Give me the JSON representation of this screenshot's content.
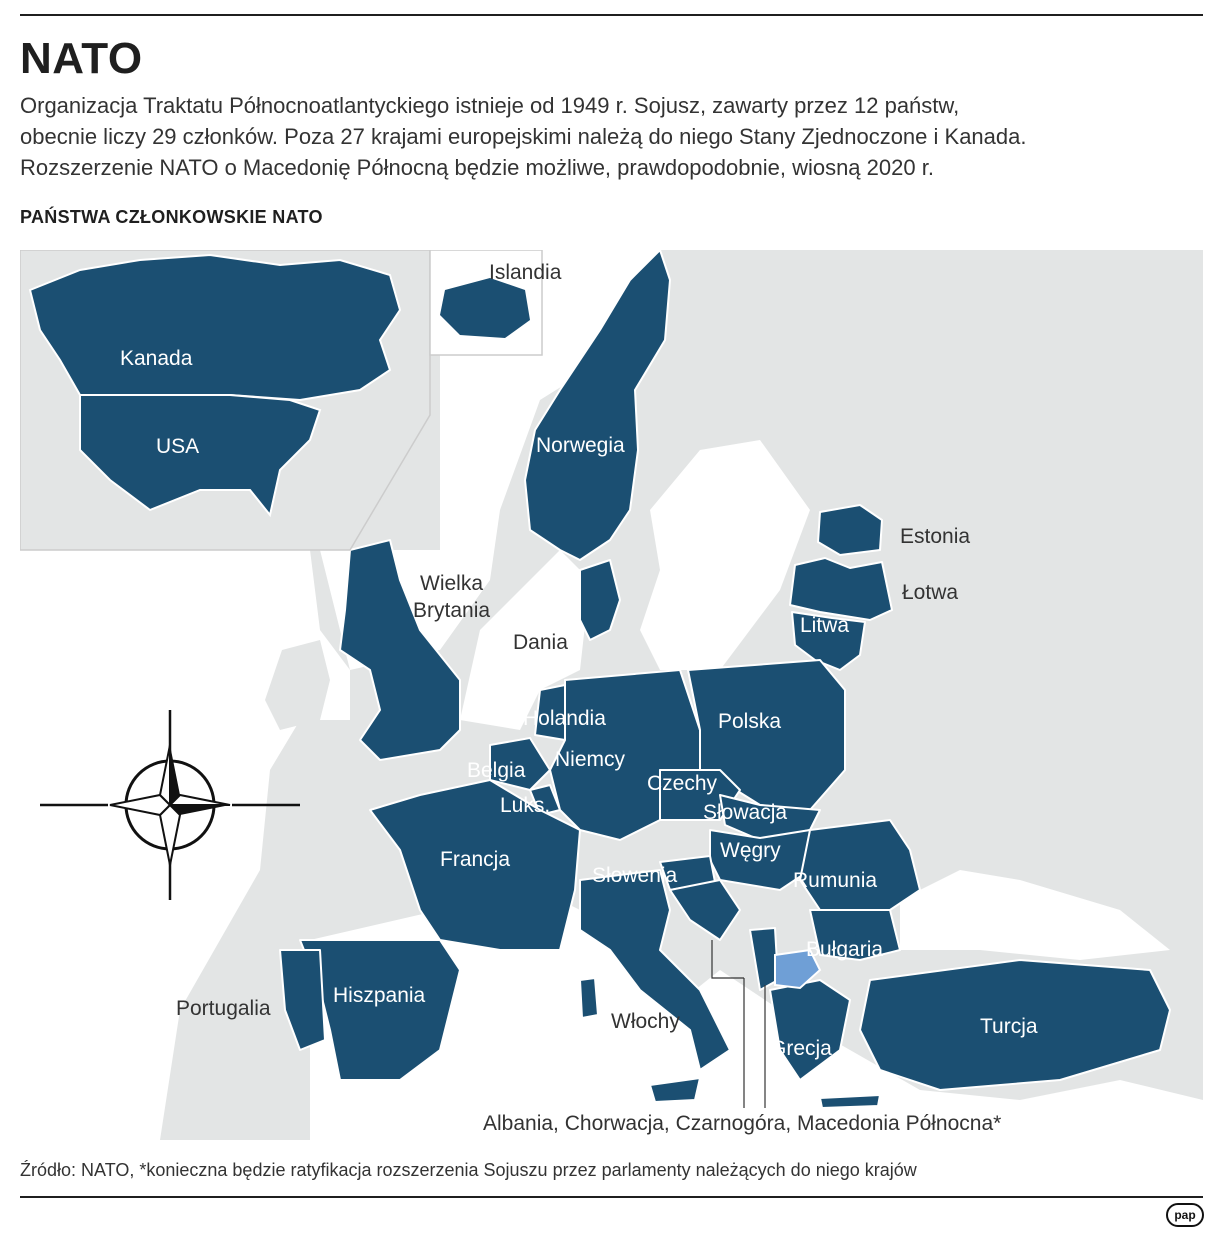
{
  "title": "NATO",
  "subtitle_lines": [
    "Organizacja Traktatu Północnoatlantyckiego istnieje od 1949 r. Sojusz, zawarty przez 12 państw,",
    "obecnie liczy 29 członków. Poza 27 krajami europejskimi należą do niego Stany Zjednoczone i Kanada.",
    "Rozszerzenie NATO o Macedonię Północną będzie możliwe, prawdopodobnie, wiosną 2020 r."
  ],
  "section_label": "PAŃSTWA CZŁONKOWSKIE NATO",
  "labels": {
    "kanada": "Kanada",
    "usa": "USA",
    "islandia": "Islandia",
    "norwegia": "Norwegia",
    "estonia": "Estonia",
    "lotwa": "Łotwa",
    "litwa": "Litwa",
    "wb_line1": "Wielka",
    "wb_line2": "Brytania",
    "dania": "Dania",
    "holandia": "Holandia",
    "polska": "Polska",
    "niemcy": "Niemcy",
    "belgia": "Belgia",
    "luks": "Luks.",
    "czechy": "Czechy",
    "slowacja": "Słowacja",
    "francja": "Francja",
    "wegry": "Węgry",
    "slowenia": "Słowenia",
    "rumunia": "Rumunia",
    "bulgaria": "Bułgaria",
    "portugalia": "Portugalia",
    "hiszpania": "Hiszpania",
    "wlochy": "Włochy",
    "grecja": "Grecja",
    "turcja": "Turcja",
    "balkans_note": "Albania, Chorwacja, Czarnogóra, Macedonia Północna*"
  },
  "colors": {
    "member": "#1b4f72",
    "candidate": "#6f9fd6",
    "nonmember": "#e3e5e5",
    "sea": "#ffffff"
  },
  "compass_icon": "nato-compass-star",
  "source": "Źródło: NATO, *konieczna będzie ratyfikacja rozszerzenia Sojuszu przez parlamenty należących do niego krajów",
  "logo_text": "pap"
}
